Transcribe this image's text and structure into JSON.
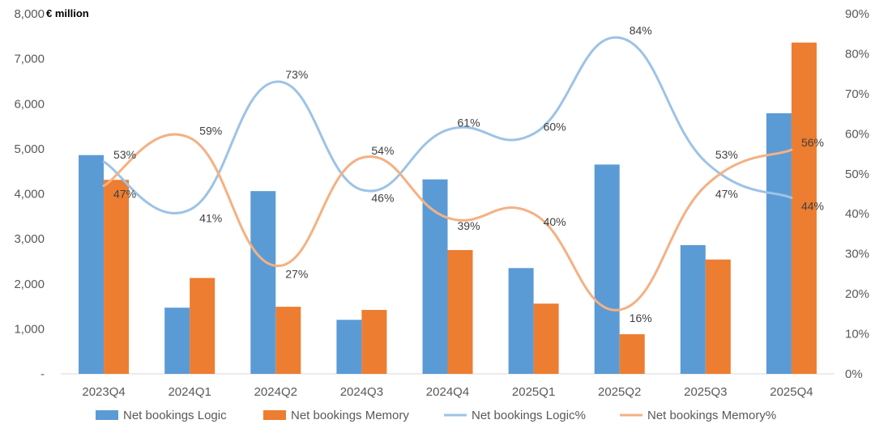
{
  "chart_data": {
    "type": "bar",
    "title": "",
    "y_unit_label": "€ million",
    "categories": [
      "2023Q4",
      "2024Q1",
      "2024Q2",
      "2024Q3",
      "2024Q4",
      "2025Q1",
      "2025Q2",
      "2025Q3",
      "2025Q4"
    ],
    "left_axis": {
      "ylim": [
        0,
        8000
      ],
      "ticks": [
        0,
        1000,
        2000,
        3000,
        4000,
        5000,
        6000,
        7000,
        8000
      ],
      "tick_labels": [
        "-",
        "1,000",
        "2,000",
        "3,000",
        "4,000",
        "5,000",
        "6,000",
        "7,000",
        "8,000"
      ]
    },
    "right_axis": {
      "ylim": [
        0,
        90
      ],
      "ticks": [
        0,
        10,
        20,
        30,
        40,
        50,
        60,
        70,
        80,
        90
      ],
      "tick_labels": [
        "0%",
        "10%",
        "20%",
        "30%",
        "40%",
        "50%",
        "60%",
        "70%",
        "80%",
        "90%"
      ]
    },
    "series": [
      {
        "name": "Net bookings Logic",
        "kind": "bar",
        "axis": "left",
        "color": "#5B9BD5",
        "values": [
          4860,
          1470,
          4060,
          1200,
          4320,
          2350,
          4650,
          2860,
          5790
        ]
      },
      {
        "name": "Net bookings Memory",
        "kind": "bar",
        "axis": "left",
        "color": "#ED7D31",
        "values": [
          4310,
          2130,
          1490,
          1420,
          2750,
          1560,
          880,
          2540,
          7360
        ]
      },
      {
        "name": "Net bookings Logic%",
        "kind": "line",
        "axis": "right",
        "color": "#9DC3E6",
        "values": [
          53,
          41,
          73,
          46,
          61,
          60,
          84,
          53,
          44
        ],
        "labels": [
          "53%",
          "41%",
          "73%",
          "46%",
          "61%",
          "60%",
          "84%",
          "53%",
          "44%"
        ]
      },
      {
        "name": "Net bookings Memory%",
        "kind": "line",
        "axis": "right",
        "color": "#F4B183",
        "values": [
          47,
          59,
          27,
          54,
          39,
          40,
          16,
          47,
          56
        ],
        "labels": [
          "47%",
          "59%",
          "27%",
          "54%",
          "39%",
          "40%",
          "16%",
          "47%",
          "56%"
        ]
      }
    ],
    "legend": {
      "position": "bottom",
      "entries": [
        "Net bookings Logic",
        "Net bookings Memory",
        "Net bookings Logic%",
        "Net bookings Memory%"
      ]
    }
  }
}
